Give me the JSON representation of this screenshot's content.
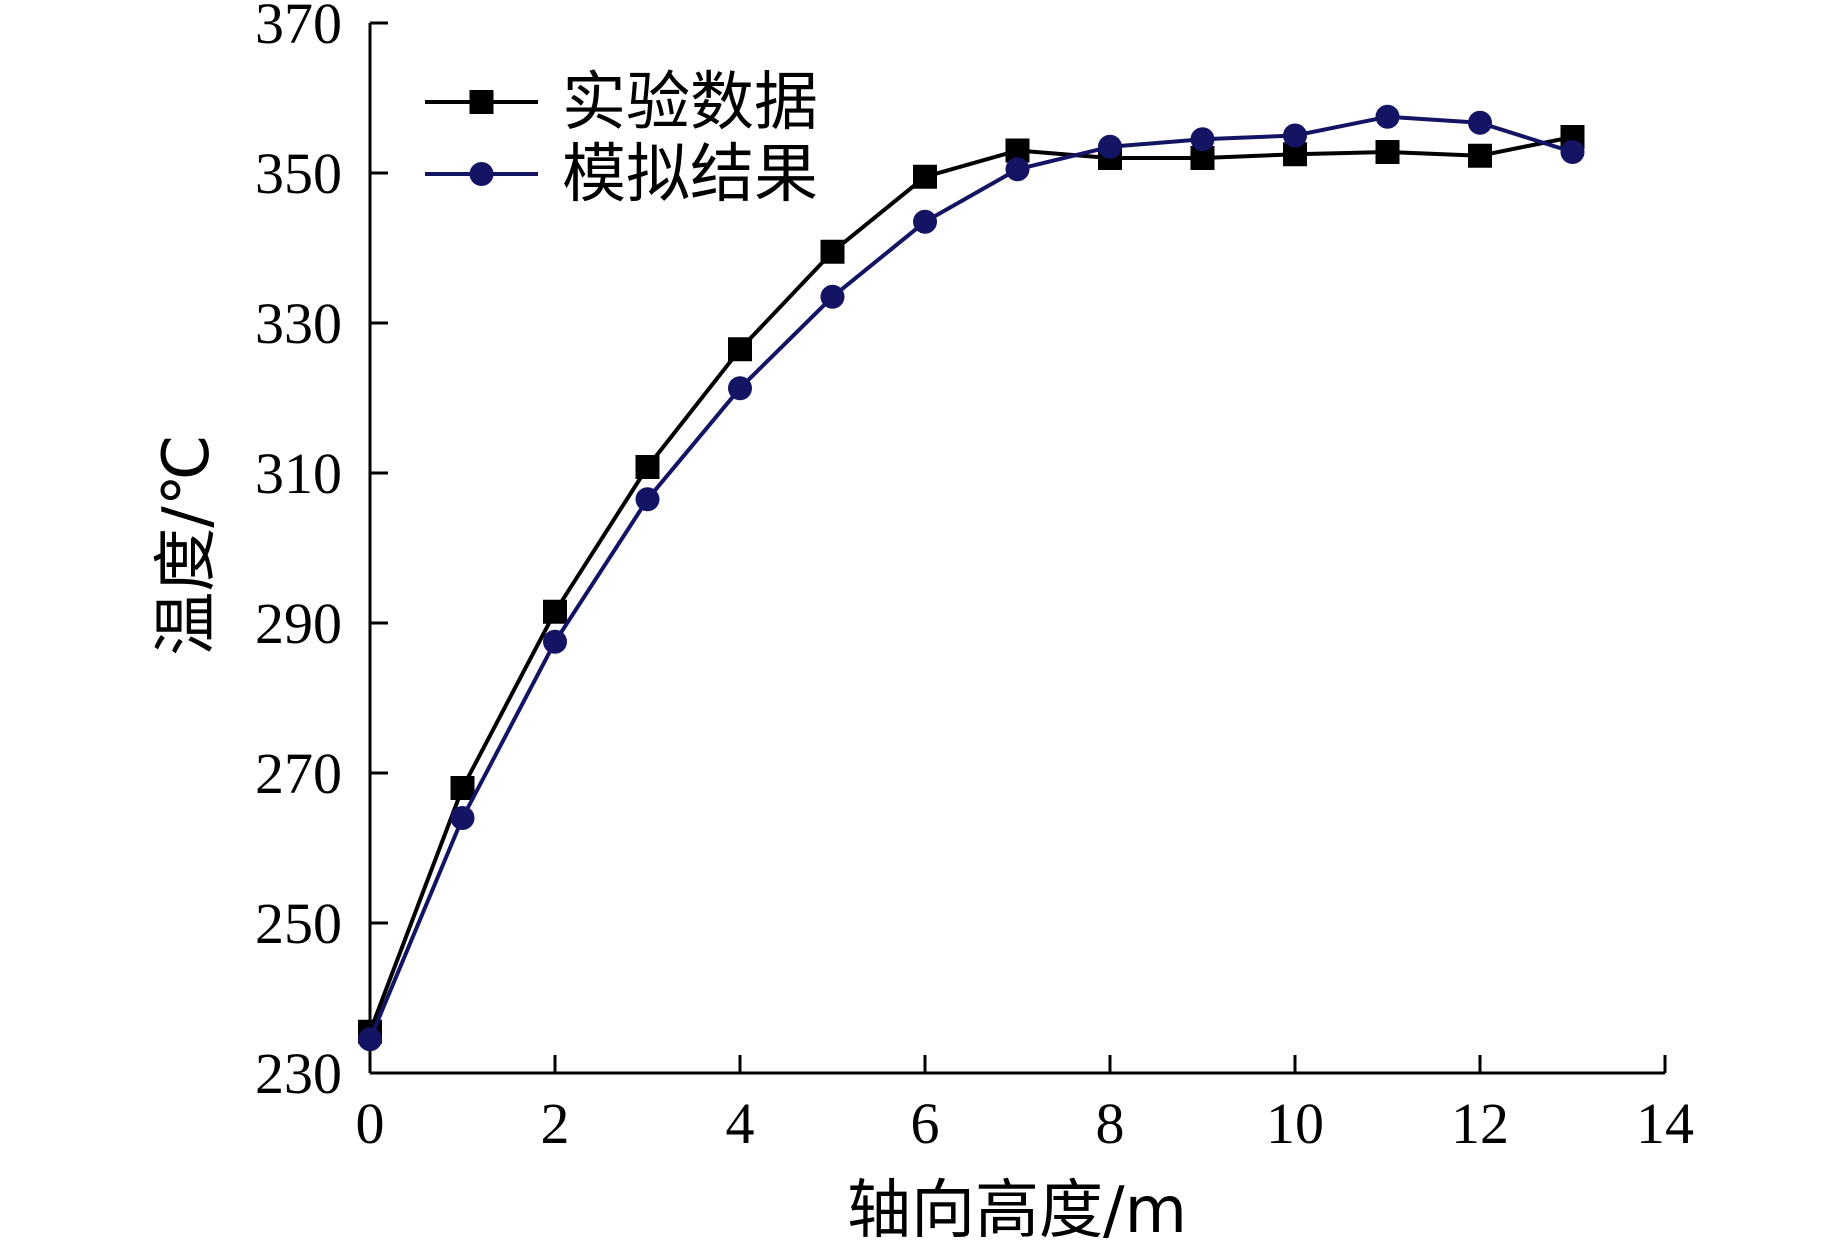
{
  "chart_data": {
    "type": "line",
    "xlabel": "轴向高度/m",
    "ylabel": "温度/℃",
    "xlim": [
      0,
      14
    ],
    "ylim": [
      230,
      370
    ],
    "xticks": [
      0,
      2,
      4,
      6,
      8,
      10,
      12,
      14
    ],
    "yticks": [
      230,
      250,
      270,
      290,
      310,
      330,
      350,
      370
    ],
    "grid": false,
    "legend_position": "top-left",
    "series": [
      {
        "name": "实验数据",
        "marker": "square",
        "color": "#000000",
        "x": [
          0,
          1,
          2,
          3,
          4,
          5,
          6,
          7,
          8,
          9,
          10,
          11,
          12,
          13
        ],
        "y": [
          235.5,
          268,
          291.5,
          310.8,
          326.5,
          339.5,
          349.5,
          353,
          352,
          352,
          352.5,
          352.8,
          352.3,
          354.8
        ]
      },
      {
        "name": "模拟结果",
        "marker": "circle",
        "color": "#141464",
        "x": [
          0,
          1,
          2,
          3,
          4,
          5,
          6,
          7,
          8,
          9,
          10,
          11,
          12,
          13
        ],
        "y": [
          234.5,
          264,
          287.5,
          306.5,
          321.3,
          333.5,
          343.5,
          350.5,
          353.5,
          354.5,
          355,
          357.5,
          356.7,
          352.8
        ]
      }
    ]
  }
}
